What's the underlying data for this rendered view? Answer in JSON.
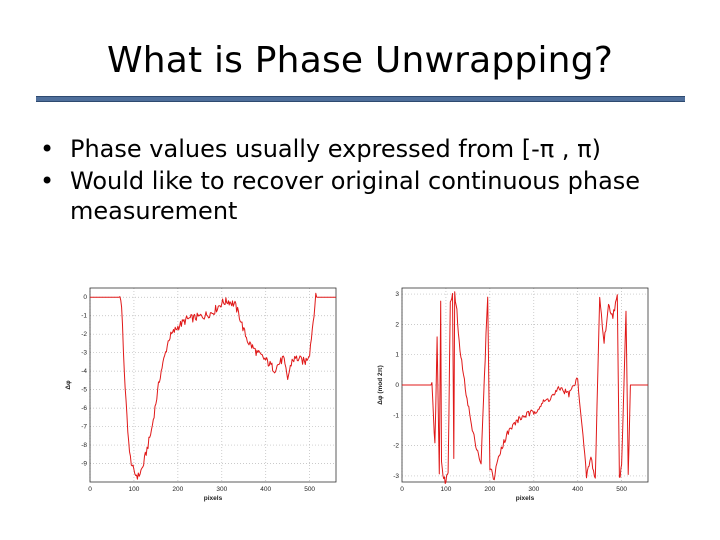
{
  "slide": {
    "title": "What is Phase Unwrapping?",
    "bullets": [
      {
        "bullet_symbol": "•",
        "text": "Phase values usually expressed from [-π , π)"
      },
      {
        "bullet_symbol": "•",
        "text": "Would like to recover original continuous phase measurement"
      }
    ],
    "accent_color": "#4f6f9b"
  },
  "chart_data": [
    {
      "type": "line",
      "name": "unwrapped-phase",
      "xlabel": "pixels",
      "ylabel": "Δφ",
      "xlim": [
        0,
        560
      ],
      "ylim": [
        -10,
        0.5
      ],
      "x_ticks": [
        0,
        100,
        200,
        300,
        400,
        500
      ],
      "y_ticks": [
        0,
        -1,
        -2,
        -3,
        -4,
        -5,
        -6,
        -7,
        -8,
        -9
      ],
      "grid": true,
      "color": "#e01818",
      "series": [
        {
          "name": "phase",
          "x": [
            0,
            70,
            72,
            80,
            90,
            100,
            110,
            120,
            140,
            160,
            180,
            200,
            220,
            240,
            260,
            280,
            300,
            315,
            330,
            340,
            350,
            360,
            380,
            400,
            420,
            440,
            450,
            460,
            470,
            490,
            500,
            512,
            514,
            530,
            560
          ],
          "y": [
            0,
            0,
            -0.6,
            -5,
            -8.5,
            -9.5,
            -9.7,
            -9.2,
            -7.2,
            -4.2,
            -2.2,
            -1.6,
            -1.2,
            -1.1,
            -1.0,
            -0.8,
            -0.3,
            -0.2,
            -0.4,
            -1.0,
            -1.8,
            -2.4,
            -3.0,
            -3.4,
            -3.9,
            -3.3,
            -4.4,
            -3.4,
            -3.3,
            -3.5,
            -3.0,
            -0.4,
            0,
            0,
            0
          ]
        }
      ]
    },
    {
      "type": "line",
      "name": "wrapped-phase",
      "xlabel": "pixels",
      "ylabel": "Δφ (mod 2π)",
      "xlim": [
        0,
        560
      ],
      "ylim": [
        -3.2,
        3.2
      ],
      "x_ticks": [
        0,
        100,
        200,
        300,
        400,
        500
      ],
      "y_ticks": [
        3,
        2,
        1,
        0,
        -1,
        -2,
        -3
      ],
      "grid": true,
      "color": "#e01818",
      "series": [
        {
          "name": "wrapped phase",
          "x": [
            0,
            68,
            70,
            75,
            80,
            85,
            88,
            90,
            95,
            100,
            105,
            110,
            115,
            118,
            120,
            125,
            130,
            140,
            160,
            180,
            195,
            200,
            210,
            220,
            240,
            260,
            280,
            300,
            320,
            340,
            360,
            380,
            400,
            420,
            430,
            440,
            450,
            460,
            470,
            480,
            490,
            495,
            500,
            510,
            515,
            520,
            530,
            560
          ],
          "y": [
            0,
            0,
            -0.5,
            -2.0,
            1.5,
            -3.0,
            2.8,
            -2.5,
            -3.1,
            -3.2,
            -2.8,
            2.7,
            3.0,
            -2.5,
            3.0,
            2.4,
            1.4,
            0.3,
            -1.5,
            -2.6,
            3.0,
            -2.7,
            -3.1,
            -2.3,
            -1.6,
            -1.2,
            -1.0,
            -0.9,
            -0.6,
            -0.4,
            -0.1,
            -0.3,
            0.2,
            -3.0,
            -2.4,
            -3.1,
            2.9,
            1.4,
            2.6,
            2.3,
            2.9,
            -3.1,
            -2.6,
            2.5,
            -3.0,
            0.0,
            0.0,
            0.0
          ]
        }
      ]
    }
  ]
}
